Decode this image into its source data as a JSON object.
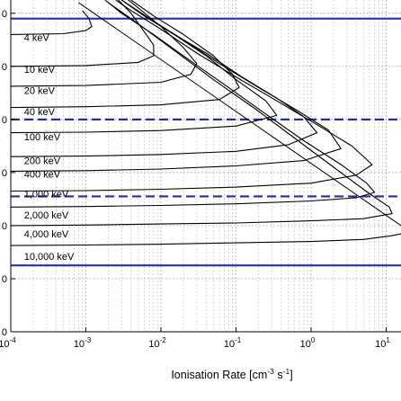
{
  "chart_data": {
    "type": "line",
    "xlabel": "Ionisation Rate [cm",
    "xlabel_sup1": "-3",
    "xlabel_mid": " s",
    "xlabel_sup2": "-1",
    "xlabel_end": "]",
    "x_scale": "log",
    "xlim": [
      0.0001,
      20
    ],
    "ylim": [
      0,
      125
    ],
    "grid": true,
    "x_ticks": [
      {
        "value": 0.0001,
        "base": "10",
        "exp": "-4"
      },
      {
        "value": 0.001,
        "base": "10",
        "exp": "-3"
      },
      {
        "value": 0.01,
        "base": "10",
        "exp": "-2"
      },
      {
        "value": 0.1,
        "base": "10",
        "exp": "-1"
      },
      {
        "value": 1,
        "base": "10",
        "exp": "0"
      },
      {
        "value": 10,
        "base": "10",
        "exp": "1"
      }
    ],
    "y_ticks": [
      {
        "value": 0,
        "label": "0"
      },
      {
        "value": 20,
        "label": "0"
      },
      {
        "value": 40,
        "label": "0"
      },
      {
        "value": 60,
        "label": "0"
      },
      {
        "value": 80,
        "label": "0"
      },
      {
        "value": 100,
        "label": "0"
      },
      {
        "value": 120,
        "label": "0"
      }
    ],
    "reference_lines": [
      {
        "y": 118,
        "style": "solid",
        "color": "#1f2fb0"
      },
      {
        "y": 80,
        "style": "dashed",
        "color": "#1f2fb0"
      },
      {
        "y": 51,
        "style": "dashed",
        "color": "#1f2fb0"
      },
      {
        "y": 25,
        "style": "solid",
        "color": "#1f2fb0"
      }
    ],
    "envelope": {
      "x": [
        0.0008,
        20
      ],
      "y": [
        124,
        38
      ]
    },
    "series": [
      {
        "name": "4 keV",
        "label_x": 0.00015,
        "label_y": 111,
        "points": [
          [
            0.0001,
            112
          ],
          [
            0.0005,
            112.3
          ],
          [
            0.001,
            113.5
          ],
          [
            0.0012,
            115
          ],
          [
            0.0011,
            118
          ],
          [
            0.0009,
            121
          ]
        ]
      },
      {
        "name": "10 keV",
        "label_x": 0.00015,
        "label_y": 99,
        "points": [
          [
            0.0001,
            100
          ],
          [
            0.001,
            100.3
          ],
          [
            0.005,
            101.5
          ],
          [
            0.008,
            104
          ],
          [
            0.008,
            108
          ],
          [
            0.006,
            113
          ],
          [
            0.004,
            120
          ],
          [
            0.0025,
            126
          ]
        ]
      },
      {
        "name": "20 keV",
        "label_x": 0.00015,
        "label_y": 91,
        "points": [
          [
            0.0001,
            92.5
          ],
          [
            0.001,
            92.8
          ],
          [
            0.01,
            94
          ],
          [
            0.025,
            97
          ],
          [
            0.03,
            101
          ],
          [
            0.02,
            107
          ],
          [
            0.01,
            115
          ],
          [
            0.005,
            122
          ],
          [
            0.003,
            127
          ]
        ]
      },
      {
        "name": "40 keV",
        "label_x": 0.00015,
        "label_y": 83,
        "points": [
          [
            0.0001,
            84.5
          ],
          [
            0.001,
            84.8
          ],
          [
            0.01,
            85.5
          ],
          [
            0.06,
            87.5
          ],
          [
            0.11,
            92
          ],
          [
            0.09,
            97
          ],
          [
            0.05,
            104
          ],
          [
            0.02,
            112
          ],
          [
            0.008,
            119
          ],
          [
            0.004,
            125
          ]
        ]
      },
      {
        "name": "100 keV",
        "label_x": 0.00015,
        "label_y": 73.5,
        "points": [
          [
            0.0001,
            75
          ],
          [
            0.001,
            75.2
          ],
          [
            0.01,
            75.8
          ],
          [
            0.1,
            77.5
          ],
          [
            0.35,
            81.5
          ],
          [
            0.25,
            87
          ],
          [
            0.1,
            95
          ],
          [
            0.04,
            104
          ],
          [
            0.015,
            112
          ],
          [
            0.006,
            119
          ],
          [
            0.003,
            125
          ]
        ]
      },
      {
        "name": "200 keV",
        "label_x": 0.00015,
        "label_y": 64.5,
        "points": [
          [
            0.0001,
            66
          ],
          [
            0.001,
            66.2
          ],
          [
            0.01,
            66.8
          ],
          [
            0.1,
            68
          ],
          [
            0.5,
            70.5
          ],
          [
            1.2,
            75
          ],
          [
            0.8,
            81
          ],
          [
            0.35,
            88
          ],
          [
            0.12,
            96
          ],
          [
            0.04,
            105
          ],
          [
            0.015,
            112
          ],
          [
            0.006,
            119
          ],
          [
            0.003,
            125
          ]
        ]
      },
      {
        "name": "400 keV",
        "label_x": 0.00015,
        "label_y": 59.5,
        "points": [
          [
            0.0001,
            60.5
          ],
          [
            0.001,
            60.7
          ],
          [
            0.01,
            61.3
          ],
          [
            0.1,
            62.5
          ],
          [
            0.8,
            64.5
          ],
          [
            2.5,
            69
          ],
          [
            1.7,
            76
          ],
          [
            0.6,
            84
          ],
          [
            0.2,
            92
          ],
          [
            0.06,
            101
          ],
          [
            0.02,
            110
          ],
          [
            0.008,
            117
          ],
          [
            0.003,
            125
          ]
        ]
      },
      {
        "name": "1,000 keV",
        "label_x": 0.00015,
        "label_y": 52,
        "points": [
          [
            0.0001,
            53
          ],
          [
            0.001,
            53.2
          ],
          [
            0.01,
            53.7
          ],
          [
            0.1,
            54.5
          ],
          [
            1,
            56
          ],
          [
            4,
            59
          ],
          [
            6.5,
            63
          ],
          [
            3.5,
            70
          ],
          [
            1.2,
            78
          ],
          [
            0.35,
            87
          ],
          [
            0.1,
            96
          ],
          [
            0.03,
            105
          ],
          [
            0.01,
            114
          ],
          [
            0.004,
            121
          ],
          [
            0.0025,
            125
          ]
        ]
      },
      {
        "name": "2,000 keV",
        "label_x": 0.00015,
        "label_y": 44,
        "points": [
          [
            0.0001,
            47
          ],
          [
            0.001,
            47.2
          ],
          [
            0.01,
            47.6
          ],
          [
            0.1,
            48.2
          ],
          [
            1,
            49.3
          ],
          [
            4,
            50.5
          ],
          [
            7,
            52.5
          ],
          [
            5.5,
            56
          ],
          [
            2.5,
            63
          ],
          [
            0.8,
            72
          ],
          [
            0.25,
            82
          ],
          [
            0.08,
            92
          ],
          [
            0.025,
            102
          ],
          [
            0.008,
            112
          ],
          [
            0.003,
            120
          ],
          [
            0.0018,
            125
          ]
        ]
      },
      {
        "name": "4,000 keV",
        "label_x": 0.00015,
        "label_y": 37,
        "points": [
          [
            0.0001,
            40
          ],
          [
            0.001,
            40.2
          ],
          [
            0.01,
            40.6
          ],
          [
            0.1,
            41
          ],
          [
            1,
            41.8
          ],
          [
            5,
            42.6
          ],
          [
            12,
            44.5
          ],
          [
            11,
            47
          ],
          [
            6,
            52
          ],
          [
            2,
            62
          ],
          [
            0.6,
            73
          ],
          [
            0.18,
            84
          ],
          [
            0.05,
            95
          ],
          [
            0.015,
            106
          ],
          [
            0.005,
            116
          ],
          [
            0.002,
            124
          ]
        ]
      },
      {
        "name": "10,000 keV",
        "label_x": 0.00015,
        "label_y": 28.5,
        "points": [
          [
            0.0001,
            32.5
          ],
          [
            0.001,
            32.7
          ],
          [
            0.01,
            33
          ],
          [
            0.1,
            33.5
          ],
          [
            1,
            34
          ],
          [
            5,
            34.8
          ],
          [
            12,
            36.2
          ],
          [
            20,
            37.5
          ]
        ]
      }
    ]
  }
}
